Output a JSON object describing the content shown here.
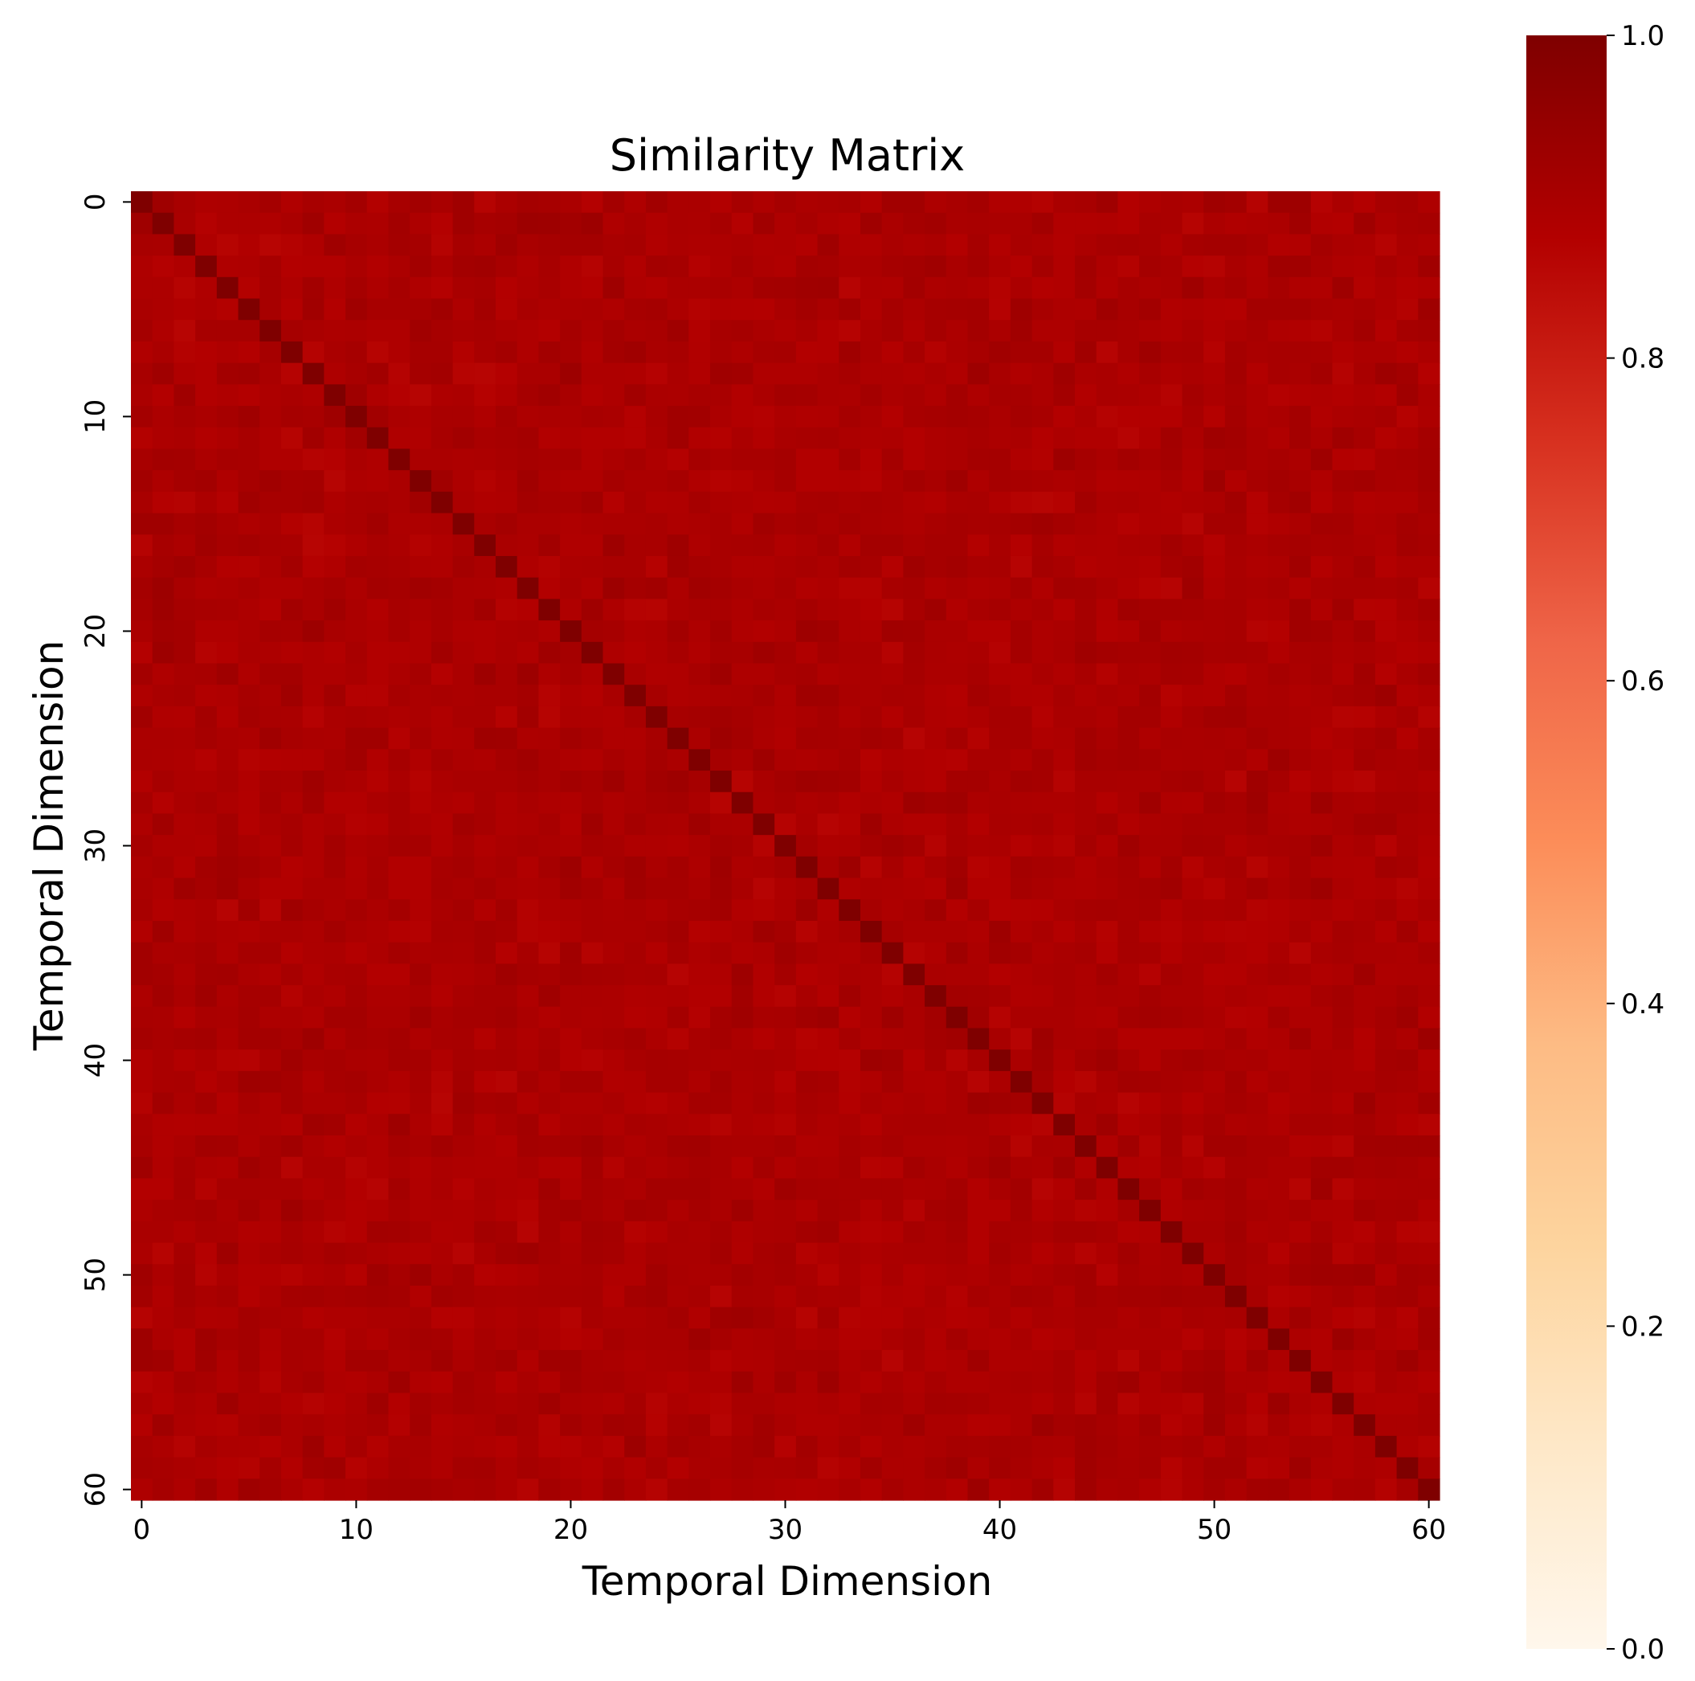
{
  "chart_data": {
    "type": "heatmap",
    "title": "Similarity Matrix",
    "xlabel": "Temporal Dimension",
    "ylabel": "Temporal Dimension",
    "size": 61,
    "x_ticks": [
      0,
      10,
      20,
      30,
      40,
      50,
      60
    ],
    "y_ticks": [
      0,
      10,
      20,
      30,
      40,
      50,
      60
    ],
    "diagonal_value": 1.0,
    "off_diagonal_mean": 0.9,
    "off_diagonal_range": [
      0.86,
      0.93
    ],
    "colorbar": {
      "min": 0.0,
      "max": 1.0,
      "ticks": [
        "0.0",
        "0.2",
        "0.4",
        "0.6",
        "0.8",
        "1.0"
      ],
      "colormap": "OrRd",
      "stops": [
        "#fff7ec",
        "#fee8c8",
        "#fdd49e",
        "#fdbb84",
        "#fc8d59",
        "#ef6548",
        "#d7301f",
        "#b30000",
        "#7f0000"
      ]
    }
  }
}
